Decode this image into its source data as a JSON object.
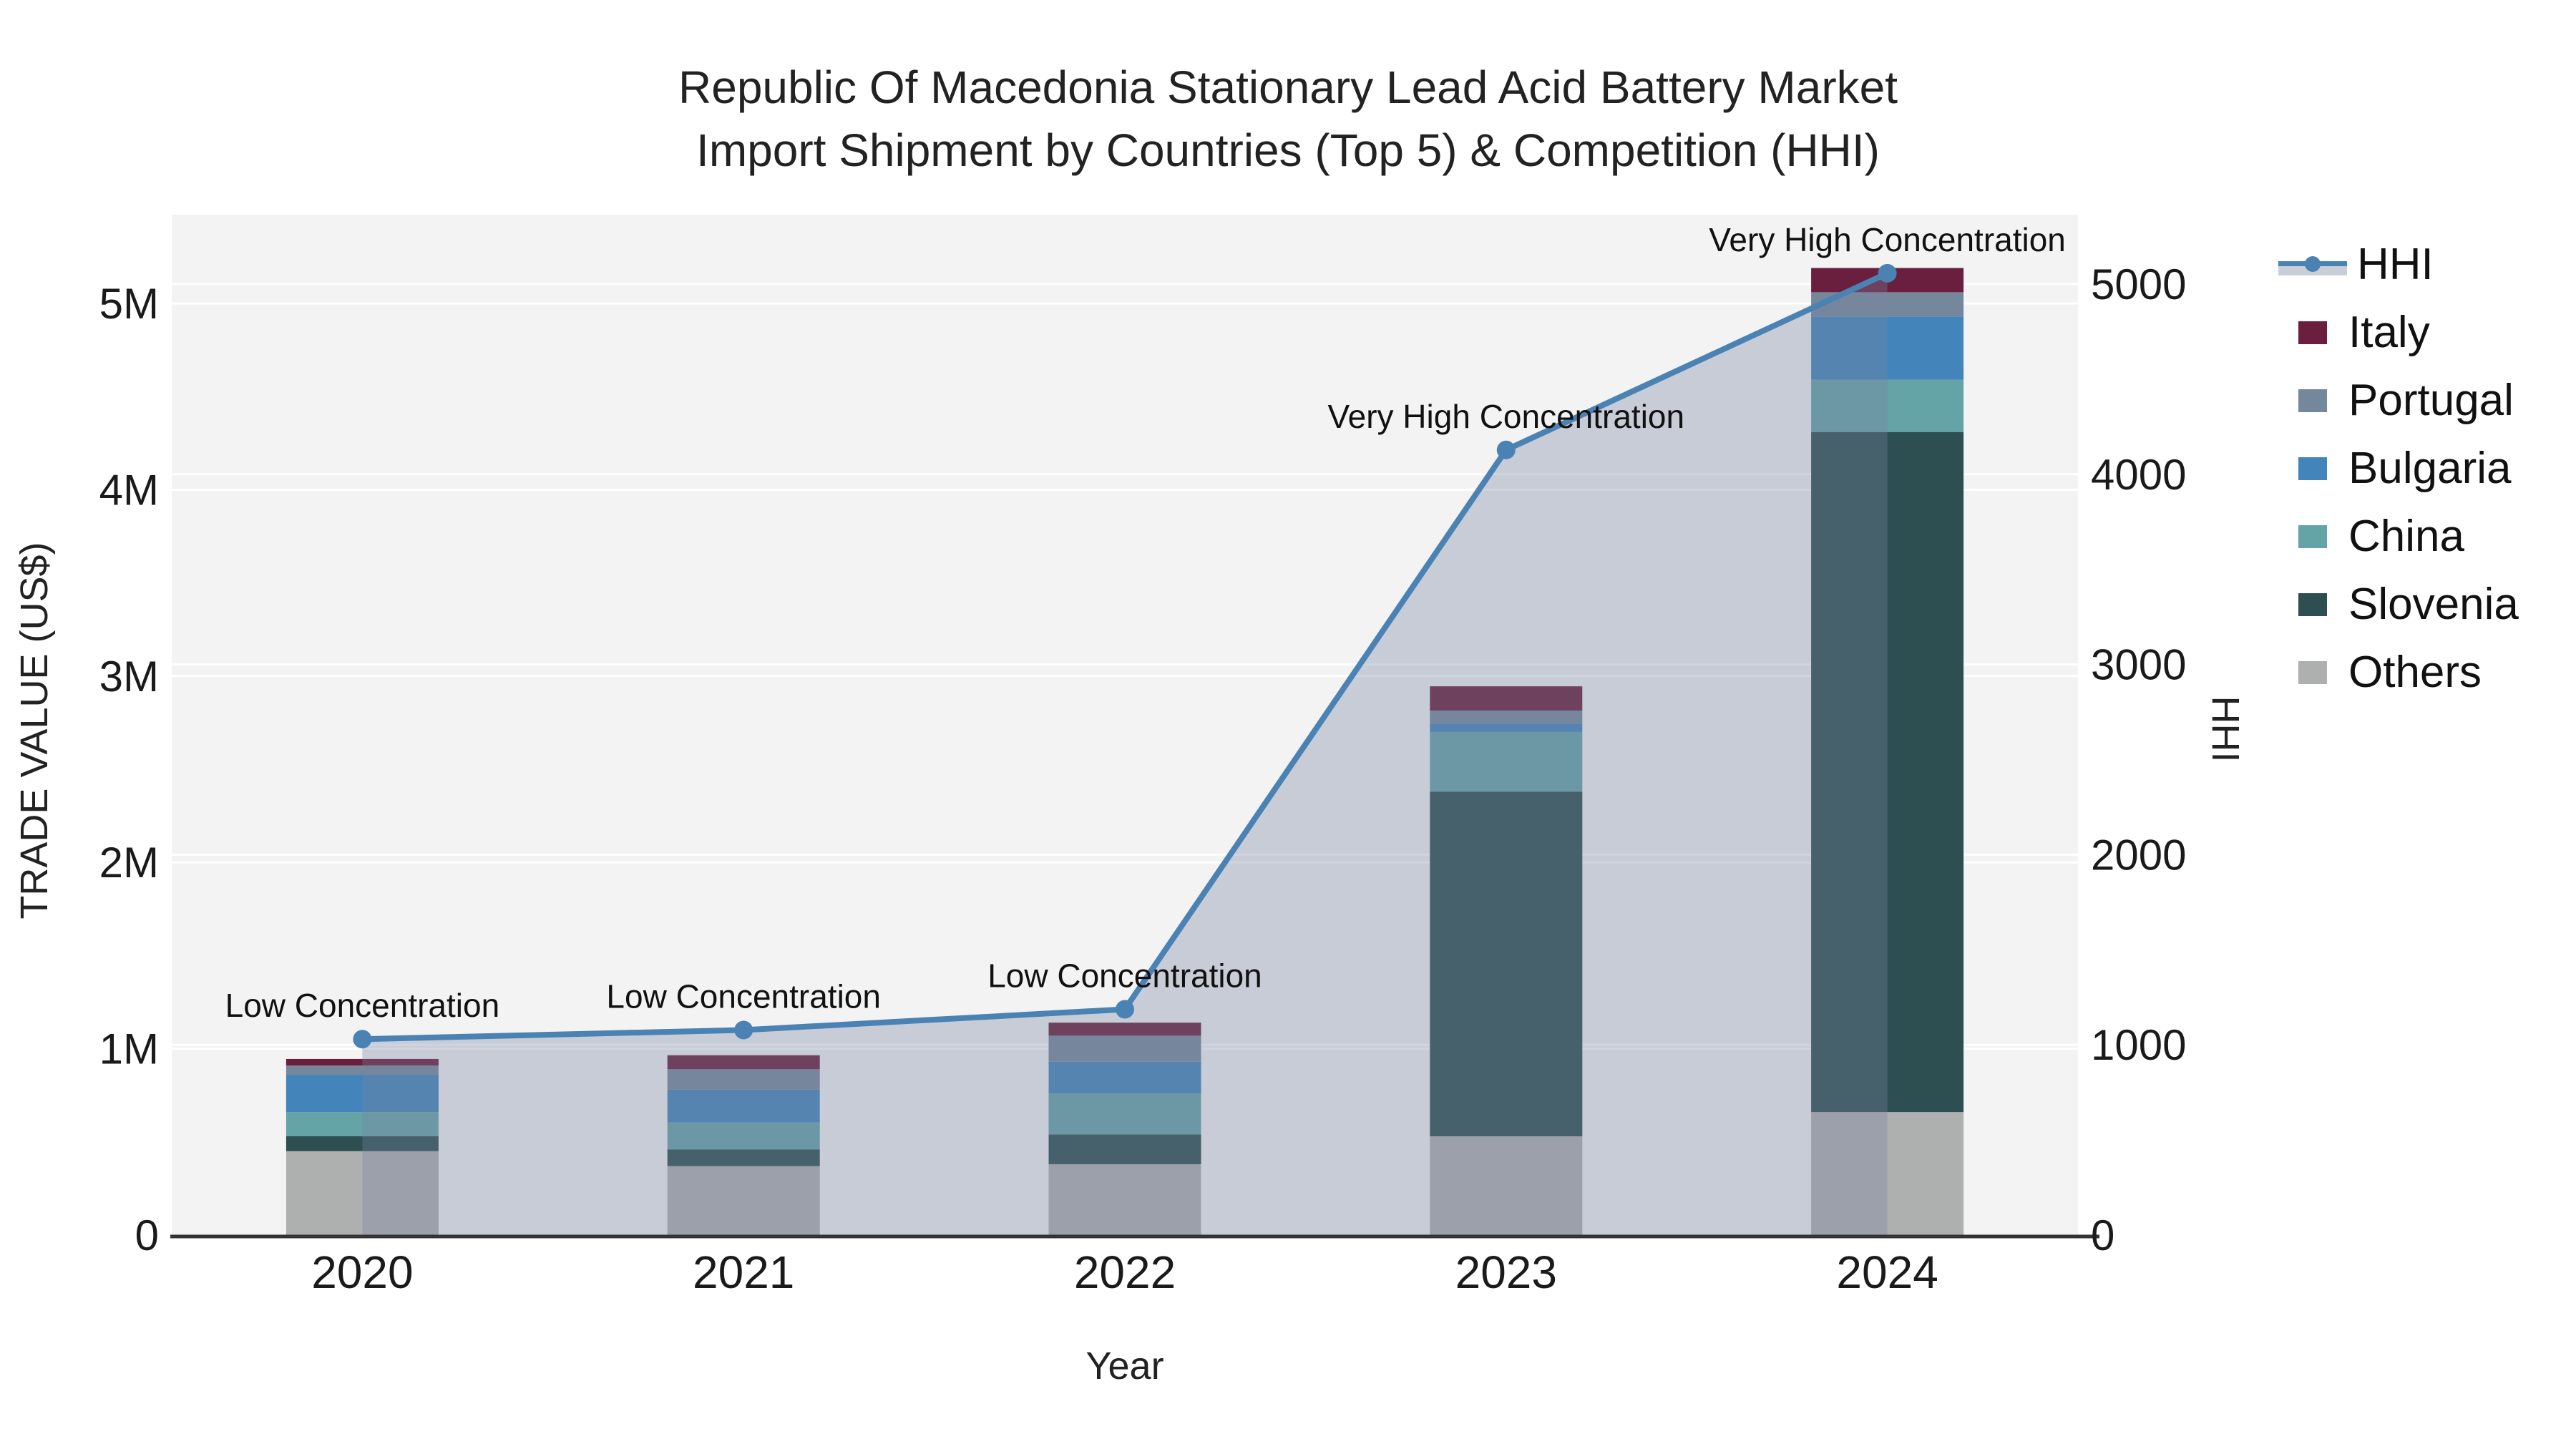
{
  "title": {
    "line1": "Republic Of Macedonia Stationary Lead Acid Battery Market",
    "line2": "Import Shipment by Countries (Top 5) & Competition (HHI)"
  },
  "chart_data": {
    "type": "combo: stacked-bar (left axis) + line-area (right axis)",
    "categories": [
      "2020",
      "2021",
      "2022",
      "2023",
      "2024"
    ],
    "bar_unit": "US$ millions",
    "series": [
      {
        "name": "Others",
        "color": "#aeb0af",
        "values": [
          0.45,
          0.37,
          0.38,
          0.53,
          0.66
        ]
      },
      {
        "name": "Slovenia",
        "color": "#2d4f51",
        "values": [
          0.08,
          0.09,
          0.16,
          1.85,
          3.65
        ]
      },
      {
        "name": "China",
        "color": "#64a3a6",
        "values": [
          0.13,
          0.145,
          0.22,
          0.32,
          0.28
        ]
      },
      {
        "name": "Bulgaria",
        "color": "#4384ba",
        "values": [
          0.2,
          0.175,
          0.17,
          0.045,
          0.34
        ]
      },
      {
        "name": "Portugal",
        "color": "#75879a",
        "values": [
          0.05,
          0.11,
          0.14,
          0.07,
          0.13
        ]
      },
      {
        "name": "Italy",
        "color": "#691f3d",
        "values": [
          0.035,
          0.075,
          0.07,
          0.13,
          0.13
        ]
      }
    ],
    "hhi": {
      "name": "HHI",
      "values": [
        1030,
        1078,
        1187,
        4128,
        5057
      ],
      "line_color": "#4a82b4",
      "area_fill": "rgba(119,133,160,0.35)"
    },
    "annotations": [
      "Low Concentration",
      "Low Concentration",
      "Low Concentration",
      "Very High Concentration",
      "Very High Concentration"
    ],
    "axes": {
      "x_title": "Year",
      "y_left_title": "TRADE VALUE (US$)",
      "y_right_title": "HHI",
      "y_left_ticks": [
        "0",
        "1M",
        "2M",
        "3M",
        "4M",
        "5M"
      ],
      "y_left_tick_values_m": [
        0,
        1,
        2,
        3,
        4,
        5
      ],
      "y_right_ticks": [
        "0",
        "1000",
        "2000",
        "3000",
        "4000",
        "5000"
      ],
      "y_right_tick_values": [
        0,
        1000,
        2000,
        3000,
        4000,
        5000
      ],
      "grid": true,
      "legend_position": "right"
    },
    "legend_order": [
      "HHI",
      "Italy",
      "Portugal",
      "Bulgaria",
      "China",
      "Slovenia",
      "Others"
    ]
  },
  "colors": {
    "plot_bg": "#f3f3f4",
    "grid": "#ffffff",
    "axis_line": "#333333",
    "tick_text": "#1a1a1a",
    "annotation_text": "#111111"
  }
}
